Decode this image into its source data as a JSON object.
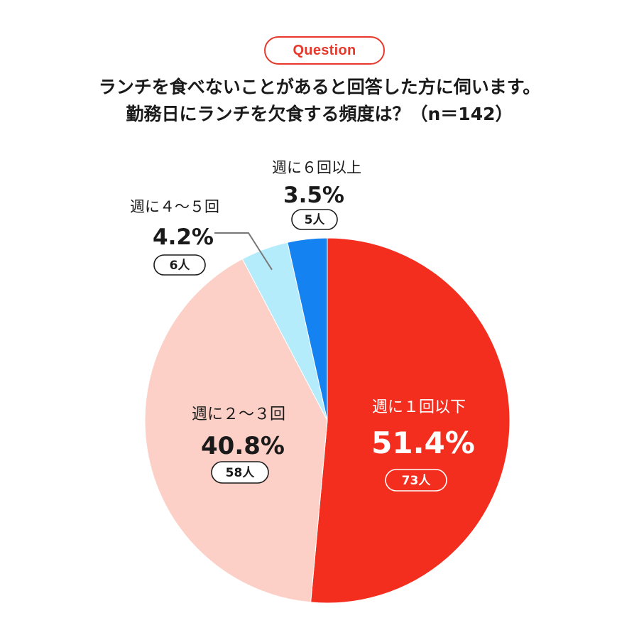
{
  "header": {
    "badge": "Question",
    "title_line_1": "ランチを食べないことがあると回答した方に伺います。",
    "title_line_2": "勤務日にランチを欠食する頻度は？（n＝142）"
  },
  "colors": {
    "accent": "#e8382c",
    "slice_1": "#f42e1e",
    "slice_2": "#fdd0c7",
    "slice_3": "#b4ecfb",
    "slice_4": "#1482f0"
  },
  "chart_data": {
    "type": "pie",
    "n": 142,
    "start_angle_deg": 0,
    "direction": "clockwise",
    "slices": [
      {
        "label": "週に１回以下",
        "percent": 51.4,
        "percent_text": "51.4%",
        "count": 73,
        "count_text": "73人",
        "color": "#f42e1e"
      },
      {
        "label": "週に２〜３回",
        "percent": 40.8,
        "percent_text": "40.8%",
        "count": 58,
        "count_text": "58人",
        "color": "#fdd0c7"
      },
      {
        "label": "週に４〜５回",
        "percent": 4.2,
        "percent_text": "4.2%",
        "count": 6,
        "count_text": "6人",
        "color": "#b4ecfb"
      },
      {
        "label": "週に６回以上",
        "percent": 3.5,
        "percent_text": "3.5%",
        "count": 5,
        "count_text": "5人",
        "color": "#1482f0"
      }
    ]
  }
}
